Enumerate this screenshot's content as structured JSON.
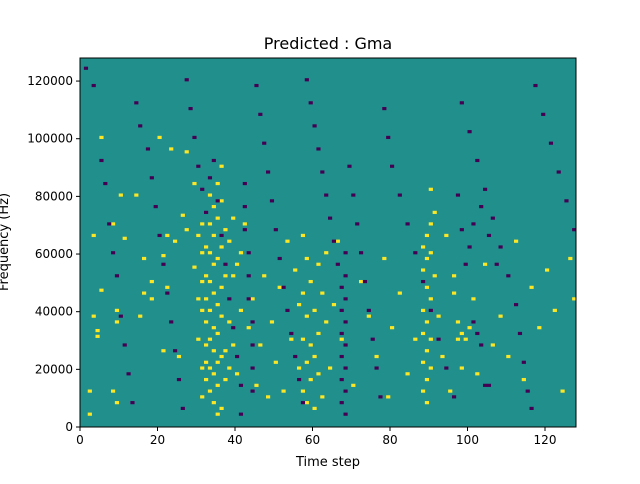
{
  "chart_data": {
    "type": "heatmap",
    "title": "Predicted : Gma",
    "xlabel": "Time step",
    "ylabel": "Frequency (Hz)",
    "xlim": [
      0,
      128
    ],
    "ylim": [
      0,
      128000
    ],
    "x_ticks": [
      0,
      20,
      40,
      60,
      80,
      100,
      120
    ],
    "x_tick_labels": [
      "0",
      "20",
      "40",
      "60",
      "80",
      "100",
      "120"
    ],
    "y_ticks": [
      0,
      20000,
      40000,
      60000,
      80000,
      100000,
      120000
    ],
    "y_tick_labels": [
      "0",
      "20000",
      "40000",
      "60000",
      "80000",
      "100000",
      "120000"
    ],
    "n_time_steps": 128,
    "n_freq_bins": 128,
    "colormap": "viridis",
    "values_range": [
      -1,
      1
    ],
    "colors": {
      "background": "#21908d",
      "high": "#fde725",
      "low": "#440154"
    },
    "description": "Sparse binary-like heatmap on teal background with yellow (high) and dark purple (low) cells; dense yellow column around time steps 31-36 and vertical bands near 57-60 and 89-90",
    "cells": {
      "high": [
        [
          2,
          4
        ],
        [
          2,
          12
        ],
        [
          3,
          38
        ],
        [
          3,
          66
        ],
        [
          4,
          33
        ],
        [
          4,
          31
        ],
        [
          5,
          100
        ],
        [
          5,
          47
        ],
        [
          8,
          12
        ],
        [
          8,
          70
        ],
        [
          9,
          40
        ],
        [
          9,
          8
        ],
        [
          9,
          36
        ],
        [
          10,
          80
        ],
        [
          11,
          65
        ],
        [
          14,
          80
        ],
        [
          15,
          38
        ],
        [
          16,
          46
        ],
        [
          16,
          58
        ],
        [
          18,
          50
        ],
        [
          18,
          44
        ],
        [
          20,
          100
        ],
        [
          21,
          59
        ],
        [
          21,
          26
        ],
        [
          22,
          48
        ],
        [
          22,
          66
        ],
        [
          23,
          96
        ],
        [
          24,
          64
        ],
        [
          25,
          24
        ],
        [
          26,
          73
        ],
        [
          27,
          95
        ],
        [
          27,
          68
        ],
        [
          29,
          55
        ],
        [
          29,
          84
        ],
        [
          30,
          66
        ],
        [
          30,
          44
        ],
        [
          30,
          30
        ],
        [
          31,
          70
        ],
        [
          31,
          60
        ],
        [
          31,
          50
        ],
        [
          31,
          40
        ],
        [
          31,
          20
        ],
        [
          31,
          10
        ],
        [
          32,
          62
        ],
        [
          32,
          52
        ],
        [
          32,
          44
        ],
        [
          32,
          36
        ],
        [
          32,
          28
        ],
        [
          32,
          22
        ],
        [
          32,
          16
        ],
        [
          33,
          80
        ],
        [
          33,
          70
        ],
        [
          33,
          60
        ],
        [
          33,
          50
        ],
        [
          33,
          40
        ],
        [
          33,
          30
        ],
        [
          33,
          20
        ],
        [
          33,
          12
        ],
        [
          34,
          76
        ],
        [
          34,
          66
        ],
        [
          34,
          56
        ],
        [
          34,
          46
        ],
        [
          34,
          34
        ],
        [
          34,
          26
        ],
        [
          34,
          18
        ],
        [
          34,
          8
        ],
        [
          35,
          84
        ],
        [
          35,
          72
        ],
        [
          35,
          58
        ],
        [
          35,
          42
        ],
        [
          35,
          32
        ],
        [
          35,
          22
        ],
        [
          35,
          14
        ],
        [
          35,
          4
        ],
        [
          36,
          90
        ],
        [
          36,
          78
        ],
        [
          36,
          62
        ],
        [
          36,
          48
        ],
        [
          36,
          38
        ],
        [
          36,
          24
        ],
        [
          36,
          6
        ],
        [
          37,
          68
        ],
        [
          37,
          52
        ],
        [
          37,
          26
        ],
        [
          37,
          16
        ],
        [
          38,
          64
        ],
        [
          38,
          36
        ],
        [
          38,
          20
        ],
        [
          39,
          72
        ],
        [
          39,
          52
        ],
        [
          39,
          28
        ],
        [
          40,
          56
        ],
        [
          40,
          18
        ],
        [
          41,
          60
        ],
        [
          41,
          40
        ],
        [
          42,
          70
        ],
        [
          43,
          34
        ],
        [
          44,
          44
        ],
        [
          45,
          14
        ],
        [
          46,
          28
        ],
        [
          47,
          52
        ],
        [
          48,
          10
        ],
        [
          49,
          36
        ],
        [
          50,
          22
        ],
        [
          51,
          48
        ],
        [
          52,
          12
        ],
        [
          53,
          64
        ],
        [
          54,
          30
        ],
        [
          55,
          54
        ],
        [
          56,
          42
        ],
        [
          56,
          20
        ],
        [
          57,
          66
        ],
        [
          57,
          46
        ],
        [
          57,
          30
        ],
        [
          57,
          12
        ],
        [
          58,
          58
        ],
        [
          58,
          38
        ],
        [
          58,
          22
        ],
        [
          58,
          8
        ],
        [
          59,
          50
        ],
        [
          59,
          28
        ],
        [
          59,
          16
        ],
        [
          60,
          40
        ],
        [
          60,
          24
        ],
        [
          60,
          6
        ],
        [
          61,
          56
        ],
        [
          61,
          32
        ],
        [
          61,
          18
        ],
        [
          62,
          46
        ],
        [
          62,
          10
        ],
        [
          63,
          60
        ],
        [
          63,
          36
        ],
        [
          64,
          20
        ],
        [
          65,
          42
        ],
        [
          66,
          64
        ],
        [
          67,
          30
        ],
        [
          70,
          14
        ],
        [
          72,
          50
        ],
        [
          74,
          38
        ],
        [
          76,
          24
        ],
        [
          78,
          58
        ],
        [
          79,
          10
        ],
        [
          80,
          34
        ],
        [
          82,
          46
        ],
        [
          84,
          18
        ],
        [
          86,
          30
        ],
        [
          88,
          62
        ],
        [
          88,
          54
        ],
        [
          88,
          40
        ],
        [
          88,
          32
        ],
        [
          88,
          22
        ],
        [
          88,
          12
        ],
        [
          89,
          66
        ],
        [
          89,
          58
        ],
        [
          89,
          48
        ],
        [
          89,
          36
        ],
        [
          89,
          26
        ],
        [
          89,
          16
        ],
        [
          89,
          8
        ],
        [
          90,
          82
        ],
        [
          90,
          70
        ],
        [
          90,
          60
        ],
        [
          90,
          44
        ],
        [
          90,
          30
        ],
        [
          90,
          20
        ],
        [
          91,
          74
        ],
        [
          91,
          52
        ],
        [
          92,
          38
        ],
        [
          93,
          24
        ],
        [
          94,
          66
        ],
        [
          95,
          12
        ],
        [
          96,
          52
        ],
        [
          96,
          46
        ],
        [
          97,
          30
        ],
        [
          97,
          36
        ],
        [
          98,
          20
        ],
        [
          98,
          32
        ],
        [
          99,
          30
        ],
        [
          100,
          34
        ],
        [
          101,
          44
        ],
        [
          102,
          18
        ],
        [
          104,
          56
        ],
        [
          106,
          28
        ],
        [
          108,
          38
        ],
        [
          110,
          24
        ],
        [
          112,
          64
        ],
        [
          114,
          16
        ],
        [
          116,
          48
        ],
        [
          118,
          34
        ],
        [
          120,
          54
        ],
        [
          122,
          40
        ],
        [
          124,
          12
        ],
        [
          126,
          58
        ],
        [
          127,
          44
        ]
      ],
      "low": [
        [
          1,
          124
        ],
        [
          3,
          118
        ],
        [
          5,
          92
        ],
        [
          6,
          84
        ],
        [
          7,
          70
        ],
        [
          8,
          60
        ],
        [
          9,
          52
        ],
        [
          10,
          38
        ],
        [
          11,
          28
        ],
        [
          12,
          18
        ],
        [
          13,
          8
        ],
        [
          14,
          112
        ],
        [
          15,
          104
        ],
        [
          17,
          96
        ],
        [
          18,
          86
        ],
        [
          19,
          76
        ],
        [
          20,
          66
        ],
        [
          21,
          56
        ],
        [
          22,
          46
        ],
        [
          23,
          36
        ],
        [
          24,
          26
        ],
        [
          25,
          16
        ],
        [
          26,
          6
        ],
        [
          27,
          120
        ],
        [
          28,
          110
        ],
        [
          29,
          100
        ],
        [
          30,
          90
        ],
        [
          31,
          82
        ],
        [
          32,
          74
        ],
        [
          33,
          86
        ],
        [
          34,
          92
        ],
        [
          35,
          78
        ],
        [
          36,
          66
        ],
        [
          37,
          56
        ],
        [
          38,
          44
        ],
        [
          39,
          34
        ],
        [
          40,
          24
        ],
        [
          41,
          14
        ],
        [
          41,
          4
        ],
        [
          42,
          84
        ],
        [
          42,
          76
        ],
        [
          42,
          68
        ],
        [
          43,
          60
        ],
        [
          43,
          52
        ],
        [
          43,
          44
        ],
        [
          44,
          36
        ],
        [
          44,
          28
        ],
        [
          44,
          20
        ],
        [
          44,
          12
        ],
        [
          45,
          118
        ],
        [
          46,
          108
        ],
        [
          47,
          98
        ],
        [
          48,
          88
        ],
        [
          49,
          78
        ],
        [
          50,
          68
        ],
        [
          51,
          58
        ],
        [
          52,
          48
        ],
        [
          53,
          40
        ],
        [
          54,
          32
        ],
        [
          55,
          24
        ],
        [
          56,
          16
        ],
        [
          57,
          8
        ],
        [
          58,
          120
        ],
        [
          59,
          112
        ],
        [
          60,
          104
        ],
        [
          61,
          96
        ],
        [
          62,
          88
        ],
        [
          63,
          80
        ],
        [
          64,
          72
        ],
        [
          65,
          64
        ],
        [
          66,
          56
        ],
        [
          67,
          48
        ],
        [
          67,
          40
        ],
        [
          67,
          32
        ],
        [
          67,
          24
        ],
        [
          67,
          16
        ],
        [
          67,
          8
        ],
        [
          68,
          60
        ],
        [
          68,
          52
        ],
        [
          68,
          44
        ],
        [
          68,
          36
        ],
        [
          68,
          28
        ],
        [
          68,
          20
        ],
        [
          68,
          12
        ],
        [
          68,
          4
        ],
        [
          69,
          90
        ],
        [
          70,
          80
        ],
        [
          71,
          70
        ],
        [
          72,
          60
        ],
        [
          73,
          50
        ],
        [
          74,
          40
        ],
        [
          75,
          30
        ],
        [
          76,
          20
        ],
        [
          77,
          10
        ],
        [
          78,
          110
        ],
        [
          79,
          100
        ],
        [
          80,
          90
        ],
        [
          82,
          80
        ],
        [
          84,
          70
        ],
        [
          86,
          60
        ],
        [
          88,
          50
        ],
        [
          90,
          40
        ],
        [
          92,
          30
        ],
        [
          94,
          20
        ],
        [
          96,
          10
        ],
        [
          98,
          112
        ],
        [
          100,
          102
        ],
        [
          102,
          92
        ],
        [
          104,
          82
        ],
        [
          106,
          72
        ],
        [
          108,
          62
        ],
        [
          110,
          52
        ],
        [
          112,
          42
        ],
        [
          113,
          32
        ],
        [
          114,
          22
        ],
        [
          115,
          12
        ],
        [
          116,
          6
        ],
        [
          117,
          118
        ],
        [
          119,
          108
        ],
        [
          121,
          98
        ],
        [
          123,
          88
        ],
        [
          125,
          78
        ],
        [
          127,
          68
        ],
        [
          97,
          80
        ],
        [
          98,
          68
        ],
        [
          99,
          56
        ],
        [
          101,
          36
        ],
        [
          102,
          32
        ],
        [
          103,
          28
        ],
        [
          104,
          14
        ],
        [
          105,
          14
        ],
        [
          100,
          62
        ],
        [
          101,
          70
        ],
        [
          103,
          76
        ],
        [
          105,
          66
        ],
        [
          107,
          56
        ]
      ]
    }
  }
}
